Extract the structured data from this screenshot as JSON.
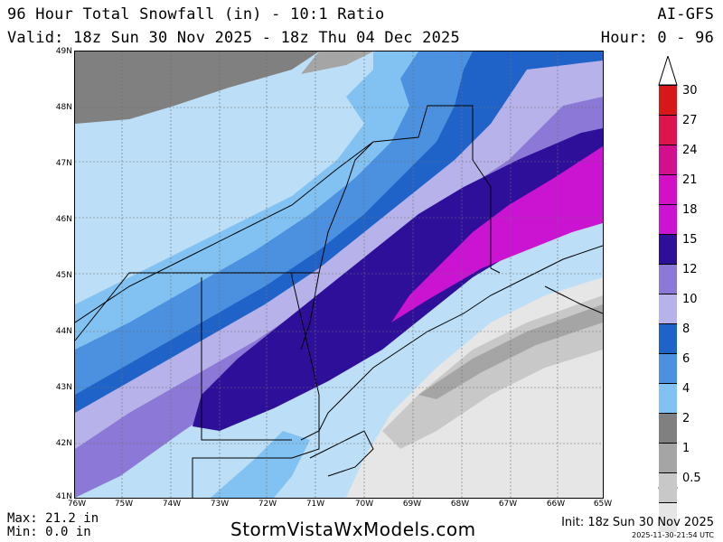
{
  "header": {
    "title": "96 Hour Total Snowfall (in) - 10:1 Ratio",
    "valid": "Valid: 18z Sun 30 Nov 2025 - 18z Thu 04 Dec 2025",
    "model": "AI-GFS",
    "hour": "Hour: 0 - 96"
  },
  "map": {
    "lat_labels": [
      "49N",
      "48N",
      "47N",
      "46N",
      "45N",
      "44N",
      "43N",
      "42N",
      "41N"
    ],
    "lon_labels": [
      "76W",
      "75W",
      "74W",
      "73W",
      "72W",
      "71W",
      "70W",
      "69W",
      "68W",
      "67W",
      "66W",
      "65W"
    ],
    "colors": {
      "0.5": "#e6e6e6",
      "1": "#c8c8c8",
      "2": "#a5a5a5",
      "4": "#808080",
      "6": "#bcdff7",
      "8": "#82c2f2",
      "10": "#4b91e0",
      "12": "#1f63c8",
      "15": "#b8b2eb",
      "18": "#8c78d6",
      "21": "#2d0f9a",
      "24": "#ca14d2",
      "27": "#d20fa0",
      "30": "#dc1450",
      "top": "#d71818"
    }
  },
  "legend": {
    "entries": [
      {
        "label": "30",
        "color": "#d71818"
      },
      {
        "label": "27",
        "color": "#dc1450"
      },
      {
        "label": "24",
        "color": "#d20f8c"
      },
      {
        "label": "21",
        "color": "#d211c6"
      },
      {
        "label": "18",
        "color": "#ca14d2"
      },
      {
        "label": "15",
        "color": "#2d0f9a"
      },
      {
        "label": "12",
        "color": "#8c78d6"
      },
      {
        "label": "10",
        "color": "#b8b2eb"
      },
      {
        "label": "8",
        "color": "#1f63c8"
      },
      {
        "label": "6",
        "color": "#4b91e0"
      },
      {
        "label": "4",
        "color": "#82c2f2"
      },
      {
        "label": "2",
        "color": "#808080"
      },
      {
        "label": "1",
        "color": "#a5a5a5"
      },
      {
        "label": "0.5",
        "color": "#c8c8c8"
      },
      {
        "label": "",
        "color": "#e6e6e6"
      }
    ]
  },
  "footer": {
    "max": "Max: 21.2 in",
    "min": "Min: 0.0 in",
    "site": "StormVistaWxModels.com",
    "init": "Init: 18z Sun 30 Nov 2025",
    "stamp": "2025-11-30-21:54 UTC"
  }
}
